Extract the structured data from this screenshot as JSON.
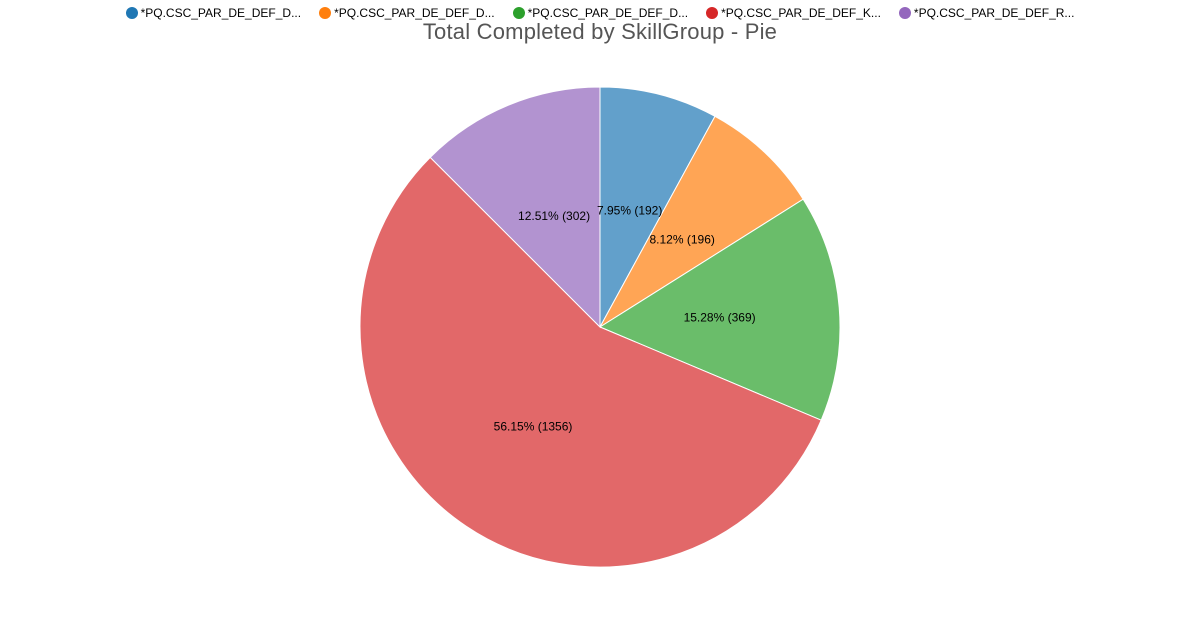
{
  "chart_data": {
    "type": "pie",
    "title": "Total Completed by SkillGroup - Pie",
    "legend_position": "top",
    "slices": [
      {
        "name": "*PQ.CSC_PAR_DE_DEF_D...",
        "value": 192,
        "percent": "7.95%",
        "label": "7.95% (192)",
        "color": "#62a0cb"
      },
      {
        "name": "*PQ.CSC_PAR_DE_DEF_D...",
        "value": 196,
        "percent": "8.12%",
        "label": "8.12% (196)",
        "color": "#ffa555"
      },
      {
        "name": "*PQ.CSC_PAR_DE_DEF_D...",
        "value": 369,
        "percent": "15.28%",
        "label": "15.28% (369)",
        "color": "#6abd6a"
      },
      {
        "name": "*PQ.CSC_PAR_DE_DEF_K...",
        "value": 1356,
        "percent": "56.15%",
        "label": "56.15% (1356)",
        "color": "#e26869"
      },
      {
        "name": "*PQ.CSC_PAR_DE_DEF_R...",
        "value": 302,
        "percent": "12.51%",
        "label": "12.51% (302)",
        "color": "#b293d0"
      }
    ],
    "legend_colors": [
      "#1f77b4",
      "#ff7f0e",
      "#2ca02c",
      "#d62728",
      "#9467bd"
    ]
  }
}
